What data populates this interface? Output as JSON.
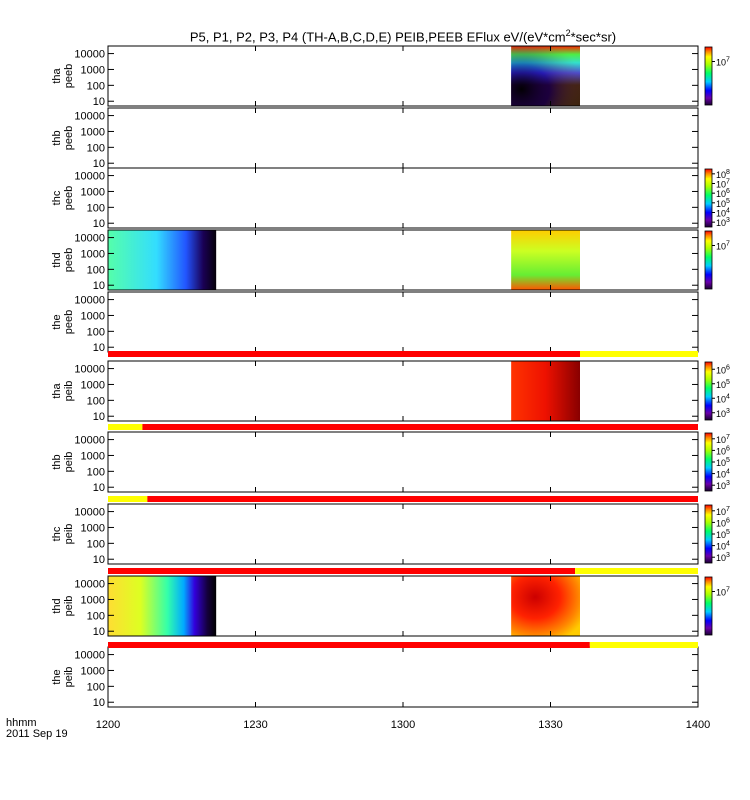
{
  "title_parts": [
    "P5, P1, P2, P3, P4 (TH-A,B,C,D,E) PEIB,PEEB EFlux eV/(eV*cm",
    "2",
    "*sec*sr)"
  ],
  "footer": {
    "format": "hhmm",
    "date": "2011 Sep 19"
  },
  "colorbar_tick_labels": {
    "p0": [
      "10^7"
    ],
    "p2": [
      "10^3",
      "10^4",
      "10^5",
      "10^6",
      "10^7",
      "10^8"
    ],
    "p3": [
      "10^7"
    ],
    "p5": [
      "10^3",
      "10^4",
      "10^5",
      "10^6"
    ],
    "p6": [
      "10^3",
      "10^4",
      "10^5",
      "10^6",
      "10^7"
    ],
    "p7": [
      "10^3",
      "10^4",
      "10^5",
      "10^6",
      "10^7"
    ],
    "p8": [
      "10^7"
    ]
  },
  "chart_data": {
    "type": "heatmap",
    "xlabel": "",
    "x_tick_labels": [
      "1200",
      "1230",
      "1300",
      "1330",
      "1400"
    ],
    "x_range": [
      "12:00",
      "14:00"
    ],
    "y_tick_labels": [
      "10",
      "100",
      "1000",
      "10000"
    ],
    "y_scale": "log",
    "y_range": [
      5,
      30000
    ],
    "panels": [
      {
        "label": [
          "tha",
          "peeb"
        ],
        "data_intervals": [
          [
            "13:22",
            "13:36"
          ]
        ],
        "colorbar": "p0"
      },
      {
        "label": [
          "thb",
          "peeb"
        ],
        "data_intervals": []
      },
      {
        "label": [
          "thc",
          "peeb"
        ],
        "data_intervals": [],
        "colorbar": "p2"
      },
      {
        "label": [
          "thd",
          "peeb"
        ],
        "data_intervals": [
          [
            "12:00",
            "12:22"
          ],
          [
            "13:22",
            "13:36"
          ]
        ],
        "colorbar": "p3"
      },
      {
        "label": [
          "the",
          "peeb"
        ],
        "data_intervals": []
      },
      {
        "label": [
          "tha",
          "peib"
        ],
        "data_intervals": [
          [
            "13:22",
            "13:36"
          ]
        ],
        "colorbar": "p5"
      },
      {
        "label": [
          "thb",
          "peib"
        ],
        "data_intervals": [],
        "colorbar": "p6"
      },
      {
        "label": [
          "thc",
          "peib"
        ],
        "data_intervals": [],
        "colorbar": "p7"
      },
      {
        "label": [
          "thd",
          "peib"
        ],
        "data_intervals": [
          [
            "12:00",
            "12:22"
          ],
          [
            "13:22",
            "13:36"
          ]
        ],
        "colorbar": "p8"
      },
      {
        "label": [
          "the",
          "peib"
        ],
        "data_intervals": []
      }
    ],
    "mode_bars": [
      {
        "segments": [
          {
            "from": "12:00",
            "to": "13:36",
            "color": "#ff0000"
          },
          {
            "from": "13:36",
            "to": "14:00",
            "color": "#ffff00"
          }
        ]
      },
      {
        "segments": [
          {
            "from": "12:00",
            "to": "12:07",
            "color": "#ffff00"
          },
          {
            "from": "12:07",
            "to": "14:00",
            "color": "#ff0000"
          }
        ]
      },
      {
        "segments": [
          {
            "from": "12:00",
            "to": "12:08",
            "color": "#ffff00"
          },
          {
            "from": "12:08",
            "to": "14:00",
            "color": "#ff0000"
          }
        ]
      },
      {
        "segments": [
          {
            "from": "12:00",
            "to": "13:35",
            "color": "#ff0000"
          },
          {
            "from": "13:35",
            "to": "14:00",
            "color": "#ffff00"
          }
        ]
      },
      {
        "segments": [
          {
            "from": "12:00",
            "to": "13:38",
            "color": "#ff0000"
          },
          {
            "from": "13:38",
            "to": "14:00",
            "color": "#ffff00"
          }
        ]
      }
    ]
  }
}
